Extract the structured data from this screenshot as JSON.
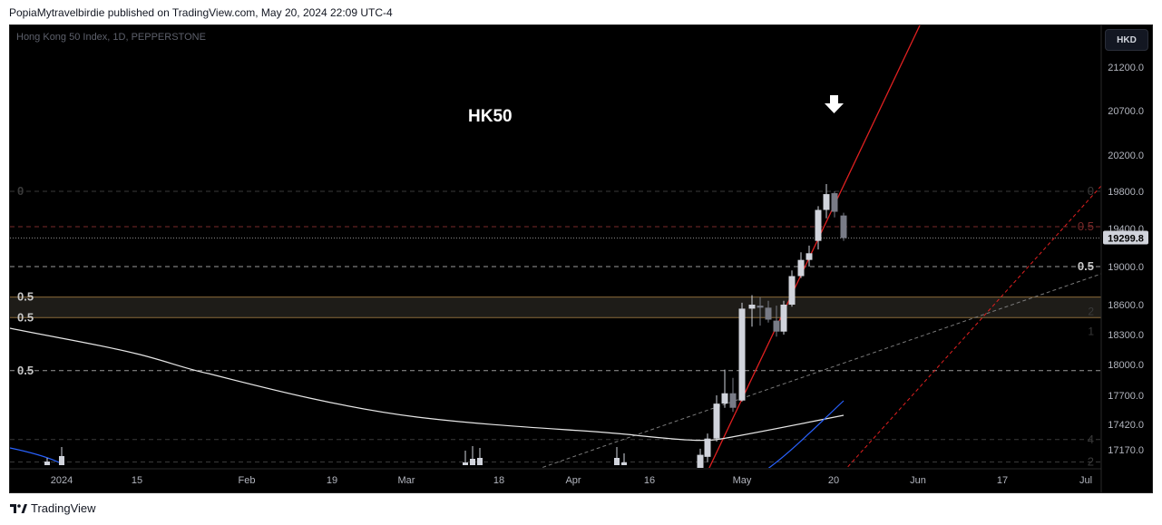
{
  "header": {
    "publisher_line": "PopiaMytravelbirdie published on TradingView.com, May 20, 2024 22:09 UTC-4"
  },
  "symbol_info": "Hong Kong 50 Index, 1D, PEPPERSTONE",
  "currency_button": "HKD",
  "chart_title": "HK50",
  "footer": {
    "brand": "TradingView",
    "logo_icon": "tradingview-logo-icon"
  },
  "colors": {
    "background": "#000000",
    "up_candle": "#d1d4dc",
    "down_candle": "#787b86",
    "trendline": "#e02020",
    "ma_white": "#e6e6e6",
    "ma_blue": "#2962ff",
    "zone": "#1e1c18"
  },
  "chart_data": {
    "type": "candlestick",
    "y_axis": {
      "ticks": [
        21200,
        20700,
        20200,
        19800,
        19400,
        19000,
        18600,
        18300,
        18000,
        17700,
        17420,
        17170
      ],
      "tick_labels": [
        "21200.0",
        "20700.0",
        "20200.0",
        "19800.0",
        "19400.0",
        "19000.0",
        "18600.0",
        "18300.0",
        "18000.0",
        "17700.0",
        "17420.0",
        "17170.0"
      ],
      "range": [
        17000,
        21500
      ]
    },
    "x_axis": {
      "tick_labels": [
        "2024",
        "15",
        "Feb",
        "19",
        "Mar",
        "18",
        "Apr",
        "16",
        "May",
        "20",
        "Jun",
        "17",
        "Jul"
      ]
    },
    "current_price": {
      "value": 19299.8,
      "label": "19299.8"
    },
    "fib_levels": [
      {
        "price": 19800,
        "left_label": "0",
        "right_label": "0",
        "style": "dash",
        "color": "#3a3a3a"
      },
      {
        "price": 19420,
        "left_label": "",
        "right_label": "0.5",
        "style": "dash",
        "color": "#7a2a2a"
      },
      {
        "price": 19000,
        "left_label": "",
        "right_label": "0.5",
        "style": "dash",
        "color": "#9a9a9a"
      },
      {
        "price": 18680,
        "left_label": "0.5",
        "right_label": "",
        "style": "solid",
        "color": "#8a6a3a"
      },
      {
        "price": 18470,
        "left_label": "0.5",
        "right_label": "",
        "style": "solid",
        "color": "#8a6a3a"
      },
      {
        "price": 17940,
        "left_label": "0.5",
        "right_label": "",
        "style": "dash",
        "color": "#9a9a9a"
      },
      {
        "price": 17270,
        "left_label": "",
        "right_label": "4",
        "style": "dash",
        "color": "#3a3a3a"
      },
      {
        "price": 17050,
        "left_label": "",
        "right_label": "2",
        "style": "dash",
        "color": "#3a3a3a"
      }
    ],
    "faint_right_labels": [
      {
        "price": 18530,
        "label": "2"
      },
      {
        "price": 18330,
        "label": "1"
      }
    ],
    "zone": {
      "top": 18680,
      "bottom": 18470
    },
    "annotations": {
      "arrow": "down-arrow",
      "arrow_date_label": "20"
    },
    "candles": [
      {
        "date": "Apr 24",
        "open": 16900,
        "high": 17180,
        "low": 16880,
        "close": 17120
      },
      {
        "date": "Apr 25",
        "open": 17100,
        "high": 17330,
        "low": 17050,
        "close": 17280
      },
      {
        "date": "Apr 26",
        "open": 17280,
        "high": 17700,
        "low": 17250,
        "close": 17620
      },
      {
        "date": "Apr 29",
        "open": 17620,
        "high": 17950,
        "low": 17580,
        "close": 17720
      },
      {
        "date": "Apr 30",
        "open": 17720,
        "high": 17870,
        "low": 17540,
        "close": 17580
      },
      {
        "date": "May 2",
        "open": 17650,
        "high": 18620,
        "low": 17640,
        "close": 18560
      },
      {
        "date": "May 3",
        "open": 18560,
        "high": 18700,
        "low": 18380,
        "close": 18600
      },
      {
        "date": "May 6",
        "open": 18590,
        "high": 18680,
        "low": 18390,
        "close": 18570
      },
      {
        "date": "May 7",
        "open": 18570,
        "high": 18640,
        "low": 18420,
        "close": 18450
      },
      {
        "date": "May 8",
        "open": 18440,
        "high": 18590,
        "low": 18280,
        "close": 18330
      },
      {
        "date": "May 9",
        "open": 18330,
        "high": 18640,
        "low": 18300,
        "close": 18600
      },
      {
        "date": "May 10",
        "open": 18600,
        "high": 18960,
        "low": 18580,
        "close": 18900
      },
      {
        "date": "May 13",
        "open": 18900,
        "high": 19150,
        "low": 18880,
        "close": 19070
      },
      {
        "date": "May 14",
        "open": 19070,
        "high": 19220,
        "low": 19000,
        "close": 19140
      },
      {
        "date": "May 16",
        "open": 19270,
        "high": 19640,
        "low": 19180,
        "close": 19600
      },
      {
        "date": "May 17",
        "open": 19600,
        "high": 19880,
        "low": 19510,
        "close": 19770
      },
      {
        "date": "May 20",
        "open": 19780,
        "high": 19800,
        "low": 19520,
        "close": 19580
      },
      {
        "date": "May 21",
        "open": 19540,
        "high": 19570,
        "low": 19270,
        "close": 19300
      }
    ]
  }
}
